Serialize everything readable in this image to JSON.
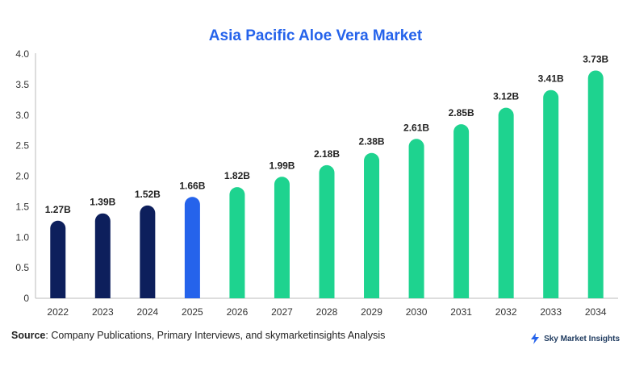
{
  "chart_data": {
    "type": "bar",
    "title": "Asia Pacific Aloe Vera Market",
    "categories": [
      "2022",
      "2023",
      "2024",
      "2025",
      "2026",
      "2027",
      "2028",
      "2029",
      "2030",
      "2031",
      "2032",
      "2033",
      "2034"
    ],
    "values": [
      1.27,
      1.39,
      1.52,
      1.66,
      1.82,
      1.99,
      2.18,
      2.38,
      2.61,
      2.85,
      3.12,
      3.41,
      3.73
    ],
    "data_labels": [
      "1.27B",
      "1.39B",
      "1.52B",
      "1.66B",
      "1.82B",
      "1.99B",
      "2.18B",
      "2.38B",
      "2.61B",
      "2.85B",
      "3.12B",
      "3.41B",
      "3.73B"
    ],
    "y_ticks": [
      "0",
      "0.5",
      "1.0",
      "1.5",
      "2.0",
      "2.5",
      "3.0",
      "3.5",
      "4.0"
    ],
    "ylim": [
      0,
      4.0
    ],
    "xlabel": "",
    "ylabel": "",
    "grid": false,
    "bar_colors": [
      "#0d1f5c",
      "#0d1f5c",
      "#0d1f5c",
      "#2563eb",
      "#1ed38f",
      "#1ed38f",
      "#1ed38f",
      "#1ed38f",
      "#1ed38f",
      "#1ed38f",
      "#1ed38f",
      "#1ed38f",
      "#1ed38f"
    ]
  },
  "source": {
    "label": "Source",
    "text": ": Company Publications, Primary Interviews, and skymarketinsights Analysis"
  },
  "brand": {
    "name": "Sky Market Insights",
    "icon": "lightning-bolt-icon",
    "icon_color": "#2563eb"
  }
}
